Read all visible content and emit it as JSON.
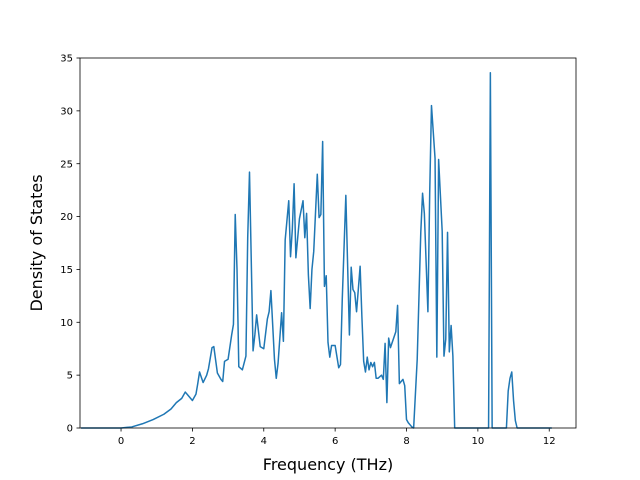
{
  "chart_data": {
    "type": "line",
    "title": "",
    "xlabel": "Frequency (THz)",
    "ylabel": "Density of States",
    "xlim": [
      -1.15,
      12.75
    ],
    "ylim": [
      0,
      35
    ],
    "xticks": [
      0,
      2,
      4,
      6,
      8,
      10,
      12
    ],
    "yticks": [
      0,
      5,
      10,
      15,
      20,
      25,
      30,
      35
    ],
    "xtick_labels": [
      "0",
      "2",
      "4",
      "6",
      "8",
      "10",
      "12"
    ],
    "ytick_labels": [
      "0",
      "5",
      "10",
      "15",
      "20",
      "25",
      "30",
      "35"
    ],
    "grid": false,
    "legend": "none",
    "series": [
      {
        "color": "#1f77b4",
        "x": [
          -1.1,
          -0.5,
          0.0,
          0.3,
          0.6,
          0.9,
          1.2,
          1.4,
          1.55,
          1.7,
          1.8,
          1.9,
          2.0,
          2.1,
          2.15,
          2.2,
          2.3,
          2.4,
          2.45,
          2.55,
          2.6,
          2.7,
          2.8,
          2.85,
          2.9,
          3.0,
          3.1,
          3.15,
          3.2,
          3.25,
          3.3,
          3.4,
          3.5,
          3.55,
          3.6,
          3.7,
          3.75,
          3.8,
          3.9,
          4.0,
          4.1,
          4.15,
          4.2,
          4.3,
          4.35,
          4.4,
          4.5,
          4.55,
          4.6,
          4.7,
          4.75,
          4.8,
          4.85,
          4.9,
          5.0,
          5.1,
          5.15,
          5.2,
          5.25,
          5.3,
          5.35,
          5.4,
          5.5,
          5.55,
          5.6,
          5.65,
          5.7,
          5.75,
          5.8,
          5.85,
          5.9,
          6.0,
          6.1,
          6.15,
          6.2,
          6.3,
          6.4,
          6.45,
          6.5,
          6.55,
          6.6,
          6.7,
          6.75,
          6.8,
          6.85,
          6.9,
          6.95,
          7.0,
          7.05,
          7.1,
          7.15,
          7.2,
          7.3,
          7.35,
          7.4,
          7.45,
          7.5,
          7.55,
          7.6,
          7.7,
          7.75,
          7.8,
          7.9,
          7.95,
          8.0,
          8.05,
          8.1,
          8.15,
          8.2,
          8.3,
          8.4,
          8.45,
          8.5,
          8.6,
          8.65,
          8.7,
          8.8,
          8.85,
          8.9,
          9.0,
          9.05,
          9.1,
          9.15,
          9.2,
          9.25,
          9.3,
          9.35,
          9.4,
          9.45,
          9.6,
          10.2,
          10.3,
          10.35,
          10.4,
          10.5,
          10.8,
          10.85,
          10.9,
          10.95,
          11.0,
          11.05,
          11.1,
          11.2,
          12.05
        ],
        "values": [
          0,
          0,
          0,
          0.1,
          0.4,
          0.8,
          1.3,
          1.8,
          2.4,
          2.8,
          3.4,
          3.0,
          2.6,
          3.2,
          4.2,
          5.3,
          4.3,
          5.0,
          5.6,
          7.6,
          7.7,
          5.2,
          4.6,
          4.4,
          6.3,
          6.5,
          8.8,
          9.8,
          20.2,
          15.0,
          5.8,
          5.5,
          6.8,
          18.0,
          24.2,
          7.3,
          8.8,
          10.7,
          7.7,
          7.5,
          10.3,
          11.0,
          13.0,
          6.5,
          4.7,
          6.1,
          10.9,
          8.2,
          17.8,
          21.5,
          16.2,
          18.8,
          23.1,
          16.1,
          19.8,
          21.5,
          18.0,
          20.3,
          14.5,
          11.3,
          15.0,
          16.7,
          24.0,
          19.9,
          20.2,
          27.1,
          13.4,
          14.4,
          8.1,
          6.7,
          7.8,
          7.8,
          5.7,
          6.0,
          12.2,
          22.0,
          8.8,
          15.2,
          13.1,
          12.8,
          11.0,
          15.3,
          10.5,
          6.3,
          5.3,
          6.7,
          5.5,
          6.2,
          5.8,
          6.2,
          4.7,
          4.7,
          5.0,
          4.6,
          8.0,
          2.4,
          8.5,
          7.6,
          8.1,
          9.1,
          11.6,
          4.2,
          4.6,
          4.0,
          0.8,
          0.5,
          0.3,
          0.1,
          0.0,
          6.5,
          18.5,
          22.2,
          20.3,
          11.0,
          22.2,
          30.5,
          25.5,
          6.7,
          25.4,
          18.6,
          6.8,
          8.4,
          18.5,
          7.2,
          9.7,
          6.8,
          0,
          0,
          0,
          0,
          0,
          0,
          33.6,
          0,
          0,
          0,
          3.5,
          4.7,
          5.3,
          2.6,
          0.7,
          0,
          0,
          0
        ]
      }
    ]
  }
}
